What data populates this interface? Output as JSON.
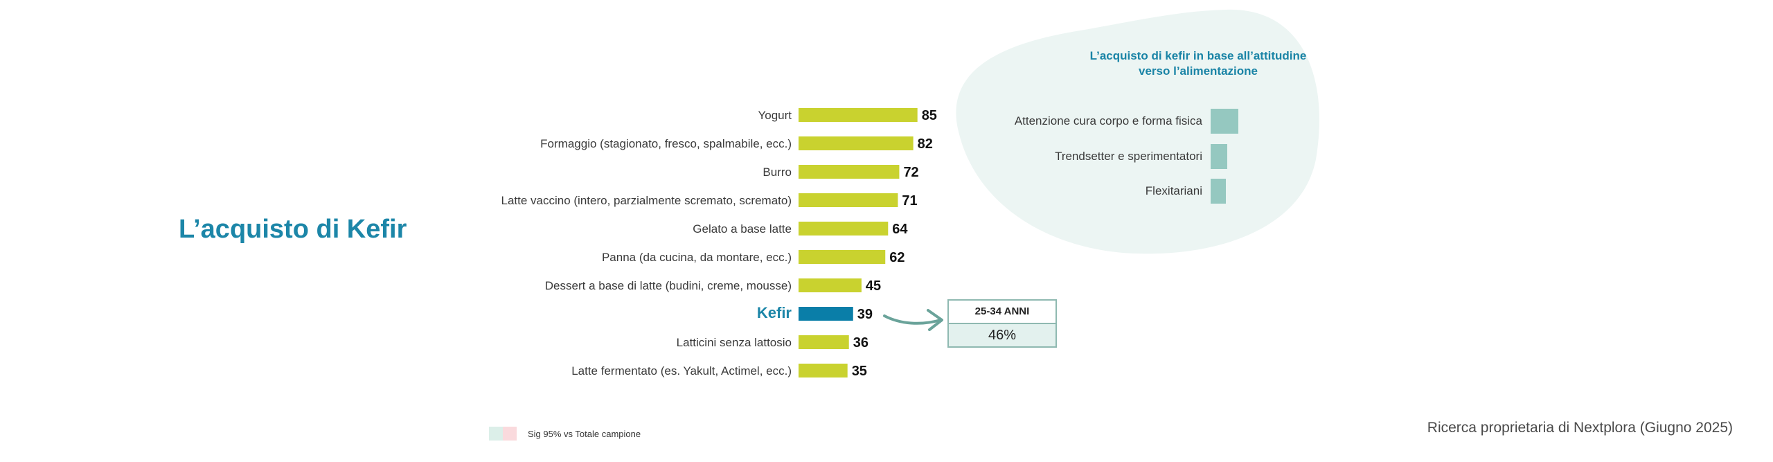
{
  "title": "L’acquisto di Kefir",
  "chart_data": {
    "type": "bar",
    "orientation": "horizontal",
    "categories": [
      "Yogurt",
      "Formaggio (stagionato, fresco, spalmabile, ecc.)",
      "Burro",
      "Latte vaccino (intero, parzialmente scremato, scremato)",
      "Gelato a base latte",
      "Panna (da cucina, da montare, ecc.)",
      "Dessert a base di latte (budini, creme, mousse)",
      "Kefir",
      "Latticini senza lattosio",
      "Latte fermentato (es. Yakult, Actimel, ecc.)"
    ],
    "values": [
      85,
      82,
      72,
      71,
      64,
      62,
      45,
      39,
      36,
      35
    ],
    "highlight": "Kefir",
    "colors": {
      "bar": "#c9d22f",
      "highlight": "#0a7ea8",
      "highlight_label": "#1c86a8"
    }
  },
  "attitude_panel": {
    "title": "L’acquisto di kefir in base all’attitudine verso l’alimentazione",
    "items": [
      {
        "label": "Attenzione cura corpo e forma fisica",
        "value": 1.0
      },
      {
        "label": "Trendsetter e sperimentatori",
        "value": 0.6
      },
      {
        "label": "Flexitariani",
        "value": 0.55
      }
    ],
    "colors": {
      "blob": "#ecf5f3",
      "bar": "#95c8c0"
    }
  },
  "age_callout": {
    "label": "25-34 ANNI",
    "value": "46%"
  },
  "legend": {
    "text": "Sig 95% vs Totale campione",
    "colors": [
      "#dcefe9",
      "#fadadd"
    ]
  },
  "source": "Ricerca proprietaria di Nextplora (Giugno 2025)"
}
